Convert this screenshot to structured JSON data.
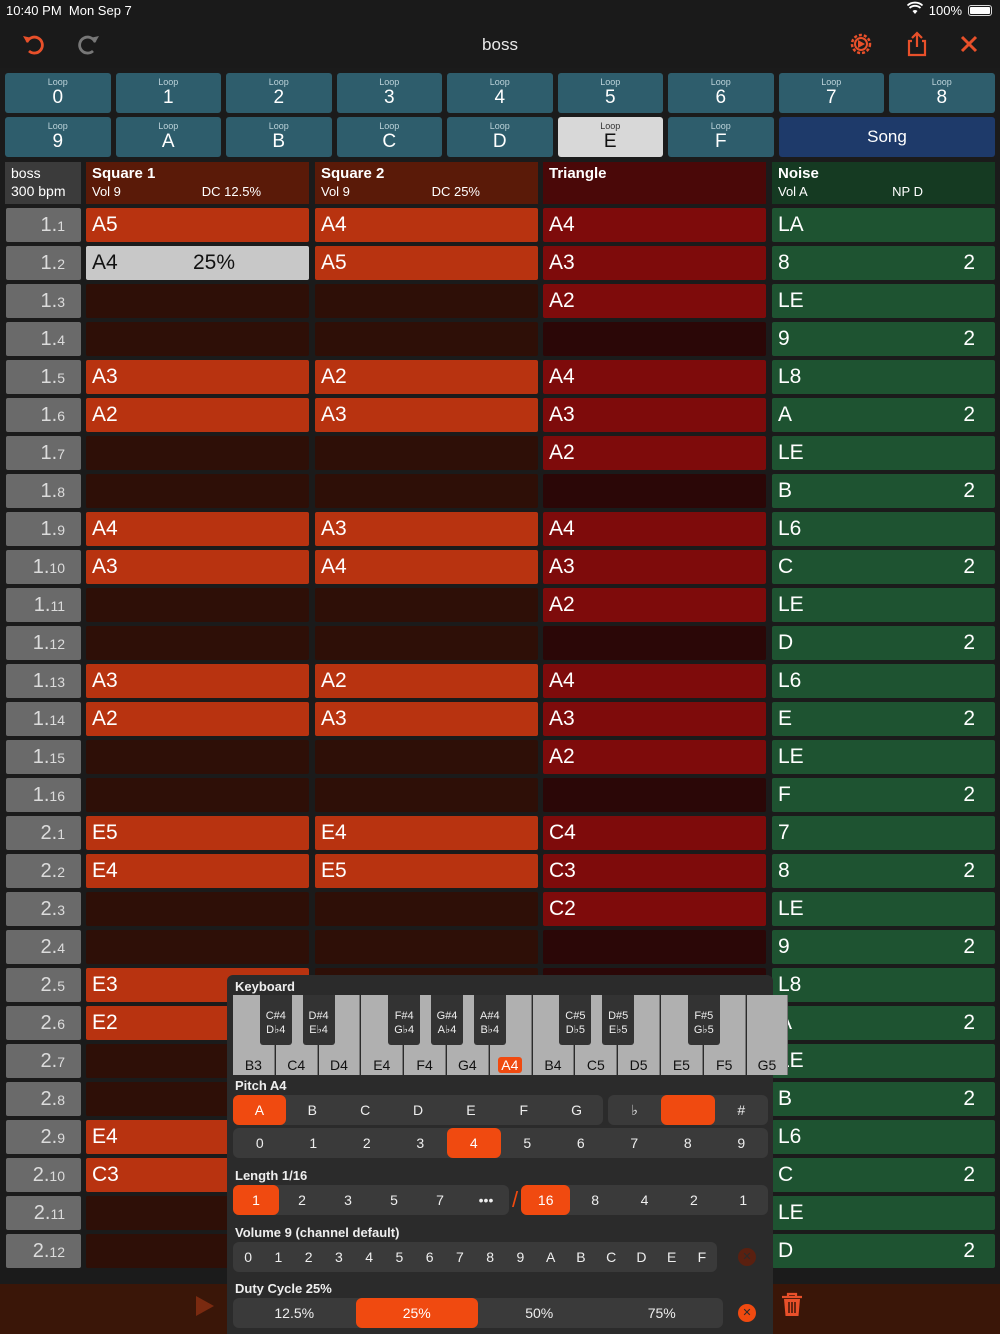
{
  "status": {
    "time": "10:40 PM",
    "date": "Mon Sep 7",
    "battery": "100%"
  },
  "toolbar": {
    "title": "boss",
    "undo": "undo-icon",
    "redo": "redo-icon",
    "settings": "gear-icon",
    "share": "share-icon",
    "close": "close-icon"
  },
  "loops": [
    {
      "label": "Loop",
      "value": "0"
    },
    {
      "label": "Loop",
      "value": "1"
    },
    {
      "label": "Loop",
      "value": "2"
    },
    {
      "label": "Loop",
      "value": "3"
    },
    {
      "label": "Loop",
      "value": "4"
    },
    {
      "label": "Loop",
      "value": "5"
    },
    {
      "label": "Loop",
      "value": "6"
    },
    {
      "label": "Loop",
      "value": "7"
    },
    {
      "label": "Loop",
      "value": "8"
    },
    {
      "label": "Loop",
      "value": "9"
    },
    {
      "label": "Loop",
      "value": "A"
    },
    {
      "label": "Loop",
      "value": "B"
    },
    {
      "label": "Loop",
      "value": "C"
    },
    {
      "label": "Loop",
      "value": "D"
    },
    {
      "label": "Loop",
      "value": "E"
    },
    {
      "label": "Loop",
      "value": "F"
    }
  ],
  "selected_loop": "E",
  "song_label": "Song",
  "header": {
    "song_name": "boss",
    "tempo": "300 bpm",
    "sq1": {
      "name": "Square 1",
      "vol": "Vol 9",
      "dc": "DC 12.5%"
    },
    "sq2": {
      "name": "Square 2",
      "vol": "Vol 9",
      "dc": "DC 25%"
    },
    "tri": {
      "name": "Triangle"
    },
    "noise": {
      "name": "Noise",
      "vol": "Vol A",
      "np": "NP D"
    }
  },
  "rows": [
    {
      "a": "1.",
      "b": "1",
      "sq1": "A5",
      "sq2": "A4",
      "tri": "A4",
      "noi": "LA",
      "nx": ""
    },
    {
      "a": "1.",
      "b": "2",
      "sq1": "A4",
      "sq1x": "25%",
      "sq2": "A5",
      "tri": "A3",
      "noi": "8",
      "nx": "2"
    },
    {
      "a": "1.",
      "b": "3",
      "sq1": "",
      "sq2": "",
      "tri": "A2",
      "noi": "LE",
      "nx": ""
    },
    {
      "a": "1.",
      "b": "4",
      "sq1": "",
      "sq2": "",
      "tri": "",
      "noi": "9",
      "nx": "2"
    },
    {
      "a": "1.",
      "b": "5",
      "sq1": "A3",
      "sq2": "A2",
      "tri": "A4",
      "noi": "L8",
      "nx": ""
    },
    {
      "a": "1.",
      "b": "6",
      "sq1": "A2",
      "sq2": "A3",
      "tri": "A3",
      "noi": "A",
      "nx": "2"
    },
    {
      "a": "1.",
      "b": "7",
      "sq1": "",
      "sq2": "",
      "tri": "A2",
      "noi": "LE",
      "nx": ""
    },
    {
      "a": "1.",
      "b": "8",
      "sq1": "",
      "sq2": "",
      "tri": "",
      "noi": "B",
      "nx": "2"
    },
    {
      "a": "1.",
      "b": "9",
      "sq1": "A4",
      "sq2": "A3",
      "tri": "A4",
      "noi": "L6",
      "nx": ""
    },
    {
      "a": "1.",
      "b": "10",
      "sq1": "A3",
      "sq2": "A4",
      "tri": "A3",
      "noi": "C",
      "nx": "2"
    },
    {
      "a": "1.",
      "b": "11",
      "sq1": "",
      "sq2": "",
      "tri": "A2",
      "noi": "LE",
      "nx": ""
    },
    {
      "a": "1.",
      "b": "12",
      "sq1": "",
      "sq2": "",
      "tri": "",
      "noi": "D",
      "nx": "2"
    },
    {
      "a": "1.",
      "b": "13",
      "sq1": "A3",
      "sq2": "A2",
      "tri": "A4",
      "noi": "L6",
      "nx": ""
    },
    {
      "a": "1.",
      "b": "14",
      "sq1": "A2",
      "sq2": "A3",
      "tri": "A3",
      "noi": "E",
      "nx": "2"
    },
    {
      "a": "1.",
      "b": "15",
      "sq1": "",
      "sq2": "",
      "tri": "A2",
      "noi": "LE",
      "nx": ""
    },
    {
      "a": "1.",
      "b": "16",
      "sq1": "",
      "sq2": "",
      "tri": "",
      "noi": "F",
      "nx": "2"
    },
    {
      "a": "2.",
      "b": "1",
      "sq1": "E5",
      "sq2": "E4",
      "tri": "C4",
      "noi": "7",
      "nx": ""
    },
    {
      "a": "2.",
      "b": "2",
      "sq1": "E4",
      "sq2": "E5",
      "tri": "C3",
      "noi": "8",
      "nx": "2"
    },
    {
      "a": "2.",
      "b": "3",
      "sq1": "",
      "sq2": "",
      "tri": "C2",
      "noi": "LE",
      "nx": ""
    },
    {
      "a": "2.",
      "b": "4",
      "sq1": "",
      "sq2": "",
      "tri": "",
      "noi": "9",
      "nx": "2"
    },
    {
      "a": "2.",
      "b": "5",
      "sq1": "E3",
      "sq2": "",
      "tri": "",
      "noi": "L8",
      "nx": ""
    },
    {
      "a": "2.",
      "b": "6",
      "sq1": "E2",
      "sq2": "",
      "tri": "",
      "noi": "A",
      "nx": "2"
    },
    {
      "a": "2.",
      "b": "7",
      "sq1": "",
      "sq2": "",
      "tri": "",
      "noi": "LE",
      "nx": ""
    },
    {
      "a": "2.",
      "b": "8",
      "sq1": "",
      "sq2": "",
      "tri": "",
      "noi": "B",
      "nx": "2"
    },
    {
      "a": "2.",
      "b": "9",
      "sq1": "E4",
      "sq2": "",
      "tri": "",
      "noi": "L6",
      "nx": ""
    },
    {
      "a": "2.",
      "b": "10",
      "sq1": "C3",
      "sq2": "",
      "tri": "",
      "noi": "C",
      "nx": "2"
    },
    {
      "a": "2.",
      "b": "11",
      "sq1": "",
      "sq2": "",
      "tri": "",
      "noi": "LE",
      "nx": ""
    },
    {
      "a": "2.",
      "b": "12",
      "sq1": "",
      "sq2": "",
      "tri": "",
      "noi": "D",
      "nx": "2"
    }
  ],
  "panel": {
    "keyboard_title": "Keyboard",
    "white_keys": [
      "B3",
      "C4",
      "D4",
      "E4",
      "F4",
      "G4",
      "A4",
      "B4",
      "C5",
      "D5",
      "E5",
      "F5",
      "G5"
    ],
    "black_keys": [
      [
        "C#4",
        "D♭4"
      ],
      [
        "D#4",
        "E♭4"
      ],
      [
        "F#4",
        "G♭4"
      ],
      [
        "G#4",
        "A♭4"
      ],
      [
        "A#4",
        "B♭4"
      ],
      [
        "C#5",
        "D♭5"
      ],
      [
        "D#5",
        "E♭5"
      ],
      [
        "F#5",
        "G♭5"
      ]
    ],
    "active_key": "A4",
    "pitch_title": "Pitch A4",
    "notes": [
      "A",
      "B",
      "C",
      "D",
      "E",
      "F",
      "G"
    ],
    "accidentals": [
      "♭",
      "",
      "#"
    ],
    "octaves": [
      "0",
      "1",
      "2",
      "3",
      "4",
      "5",
      "6",
      "7",
      "8",
      "9"
    ],
    "active_octave": "4",
    "length_title": "Length 1/16",
    "numerators": [
      "1",
      "2",
      "3",
      "5",
      "7",
      "•••"
    ],
    "denominators": [
      "16",
      "8",
      "4",
      "2",
      "1"
    ],
    "volume_title": "Volume 9 (channel default)",
    "volumes": [
      "0",
      "1",
      "2",
      "3",
      "4",
      "5",
      "6",
      "7",
      "8",
      "9",
      "A",
      "B",
      "C",
      "D",
      "E",
      "F"
    ],
    "duty_title": "Duty Cycle 25%",
    "duties": [
      "12.5%",
      "25%",
      "50%",
      "75%"
    ],
    "active_duty": "25%"
  }
}
